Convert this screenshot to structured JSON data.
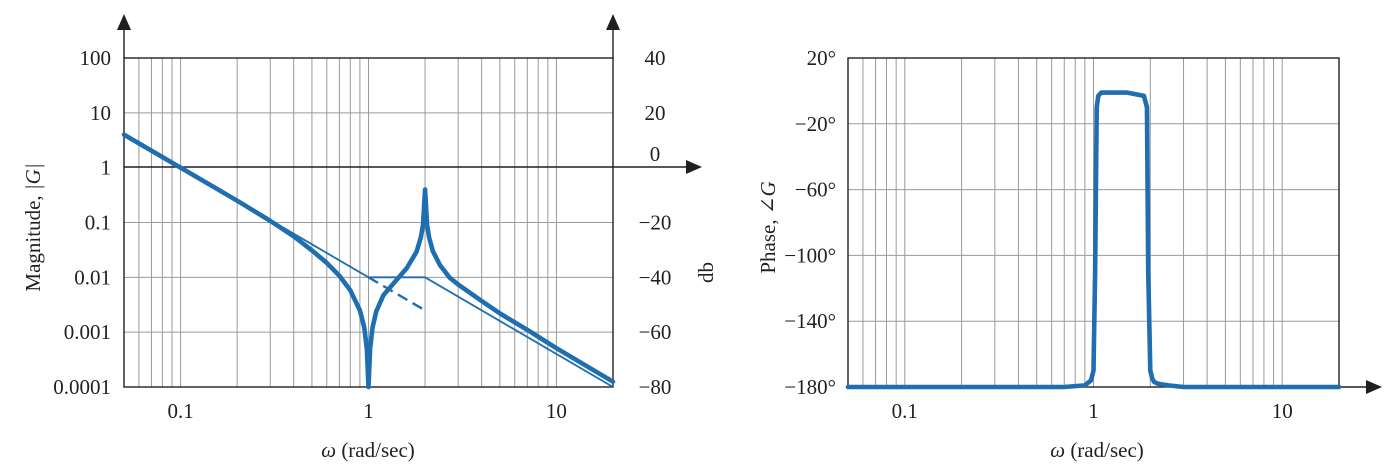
{
  "colors": {
    "curve": "#1f6fb0",
    "axis": "#231f20",
    "grid": "#9a9a9a"
  },
  "chart_data": [
    {
      "type": "line",
      "xlabel_var": "ω",
      "xlabel_unit": "(rad/sec)",
      "ylabel_left_text": "Magnitude, ",
      "ylabel_left_sym": "|G|",
      "ylabel_right": "db",
      "xscale": "log",
      "yscale": "log",
      "xlim": [
        0.05,
        20
      ],
      "ylim": [
        0.0001,
        100
      ],
      "x_ticks": [
        0.1,
        1,
        10
      ],
      "x_tick_labels": [
        "0.1",
        "1",
        "10"
      ],
      "y_ticks": [
        0.0001,
        0.001,
        0.01,
        0.1,
        1,
        10,
        100
      ],
      "y_tick_labels": [
        "0.0001",
        "0.001",
        "0.01",
        "0.1",
        "1",
        "10",
        "100"
      ],
      "db_ticks": [
        -80,
        -60,
        -40,
        -20,
        0,
        20,
        40
      ],
      "db_tick_labels": [
        "−80",
        "−60",
        "−40",
        "−20",
        "0",
        "20",
        "40"
      ],
      "grid": true,
      "series": [
        {
          "style": "thick",
          "x": [
            0.05,
            0.1,
            0.2,
            0.3,
            0.4,
            0.5,
            0.6,
            0.7,
            0.8,
            0.9,
            0.95,
            0.98,
            1.0,
            1.02,
            1.05,
            1.1,
            1.2,
            1.4,
            1.6,
            1.8,
            1.9,
            1.95,
            2.0,
            2.05,
            2.1,
            2.2,
            2.4,
            2.7,
            3,
            4,
            5,
            7,
            10,
            20
          ],
          "y": [
            4.0,
            1.0,
            0.25,
            0.107,
            0.056,
            0.031,
            0.0183,
            0.0107,
            0.0058,
            0.0025,
            0.0012,
            0.0005,
            0.0001,
            0.0005,
            0.0012,
            0.0024,
            0.0047,
            0.0087,
            0.0148,
            0.029,
            0.054,
            0.09,
            0.4,
            0.09,
            0.054,
            0.03,
            0.0167,
            0.0099,
            0.0074,
            0.0037,
            0.0022,
            0.0011,
            0.00051,
            0.000125
          ]
        },
        {
          "style": "thin",
          "x": [
            0.05,
            0.5,
            1,
            2,
            20
          ],
          "y": [
            4.0,
            0.04,
            0.01,
            0.01,
            0.0001
          ]
        },
        {
          "style": "dashed",
          "x": [
            1,
            2
          ],
          "y": [
            0.01,
            0.0025
          ]
        }
      ]
    },
    {
      "type": "line",
      "xlabel_var": "ω",
      "xlabel_unit": "(rad/sec)",
      "ylabel_text": "Phase, ",
      "ylabel_sym": "∠G",
      "xscale": "log",
      "xlim": [
        0.05,
        20
      ],
      "ylim": [
        -180,
        20
      ],
      "x_ticks": [
        0.1,
        1,
        10
      ],
      "x_tick_labels": [
        "0.1",
        "1",
        "10"
      ],
      "y_ticks": [
        20,
        -20,
        -60,
        -100,
        -140,
        -180
      ],
      "y_tick_labels": [
        "20°",
        "−20°",
        "−60°",
        "−100°",
        "−140°",
        "−180°"
      ],
      "grid": true,
      "series": [
        {
          "style": "thick",
          "x": [
            0.05,
            0.7,
            0.9,
            0.97,
            1.0,
            1.02,
            1.04,
            1.06,
            1.1,
            1.5,
            1.85,
            1.92,
            1.95,
            2.0,
            2.05,
            2.1,
            2.2,
            2.5,
            3,
            5,
            20
          ],
          "y": [
            -180,
            -180,
            -179,
            -176,
            -170,
            -110,
            -10,
            -3,
            -1,
            -1,
            -3,
            -10,
            -110,
            -170,
            -175,
            -177,
            -178,
            -179,
            -180,
            -180,
            -180
          ]
        }
      ]
    }
  ]
}
